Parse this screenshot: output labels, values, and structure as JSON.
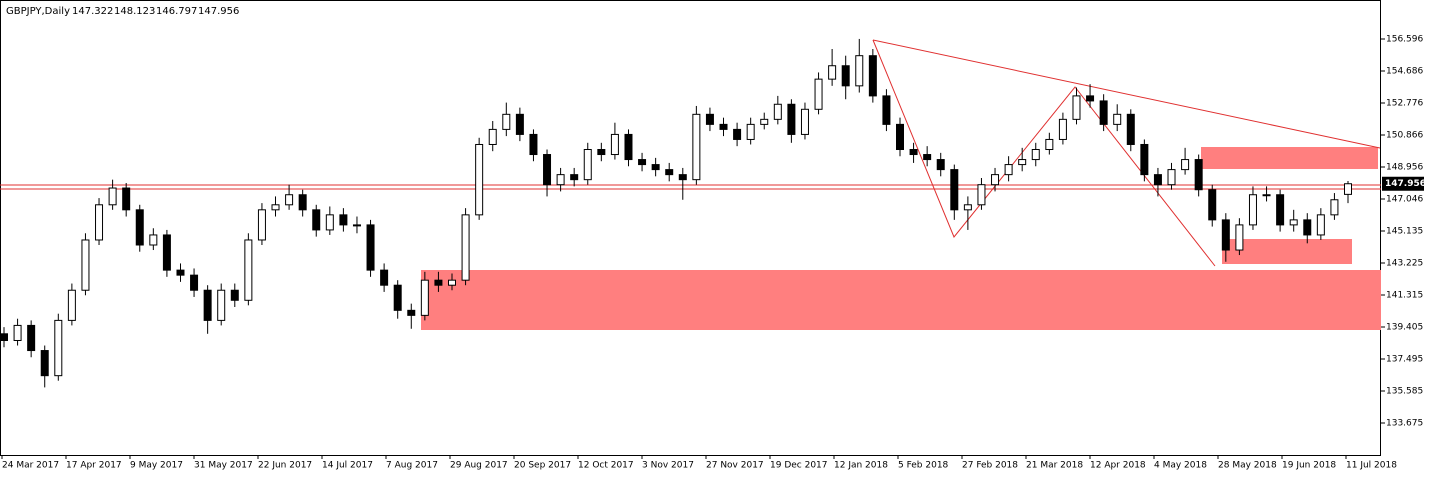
{
  "chart_data": {
    "type": "candlestick",
    "title": "GBPJPY,Daily",
    "ylim": [
      131.765,
      158.924
    ],
    "yticks": [
      156.596,
      154.686,
      152.776,
      150.866,
      148.956,
      147.046,
      145.135,
      143.225,
      141.315,
      139.405,
      137.495,
      135.585,
      133.675
    ],
    "categories": [
      "24 Mar 2017",
      "17 Apr 2017",
      "9 May 2017",
      "31 May 2017",
      "22 Jun 2017",
      "14 Jul 2017",
      "7 Aug 2017",
      "29 Aug 2017",
      "20 Sep 2017",
      "12 Oct 2017",
      "3 Nov 2017",
      "27 Nov 2017",
      "19 Dec 2017",
      "12 Jan 2018",
      "5 Feb 2018",
      "27 Feb 2018",
      "21 Mar 2018",
      "12 Apr 2018",
      "4 May 2018",
      "28 May 2018",
      "19 Jun 2018",
      "11 Jul 2018"
    ],
    "candles": [
      [
        139.0,
        139.4,
        138.2,
        138.6
      ],
      [
        138.6,
        139.9,
        138.3,
        139.5
      ],
      [
        139.5,
        139.8,
        137.6,
        138.0
      ],
      [
        138.0,
        138.3,
        135.8,
        136.5
      ],
      [
        136.5,
        140.2,
        136.2,
        139.8
      ],
      [
        139.8,
        142.0,
        139.5,
        141.6
      ],
      [
        141.6,
        145.0,
        141.3,
        144.6
      ],
      [
        144.6,
        147.1,
        144.3,
        146.7
      ],
      [
        146.7,
        148.2,
        146.4,
        147.7
      ],
      [
        147.7,
        148.0,
        146.0,
        146.4
      ],
      [
        146.4,
        146.7,
        143.9,
        144.3
      ],
      [
        144.3,
        145.3,
        144.0,
        144.9
      ],
      [
        144.9,
        145.2,
        142.4,
        142.8
      ],
      [
        142.8,
        143.2,
        142.1,
        142.5
      ],
      [
        142.5,
        142.9,
        141.2,
        141.6
      ],
      [
        141.6,
        141.9,
        139.0,
        139.8
      ],
      [
        139.8,
        142.0,
        139.5,
        141.6
      ],
      [
        141.6,
        142.0,
        140.6,
        141.0
      ],
      [
        141.0,
        145.0,
        140.7,
        144.6
      ],
      [
        144.6,
        146.8,
        144.3,
        146.4
      ],
      [
        146.4,
        147.2,
        146.0,
        146.7
      ],
      [
        146.7,
        147.9,
        146.4,
        147.3
      ],
      [
        147.3,
        147.6,
        146.0,
        146.4
      ],
      [
        146.4,
        146.7,
        144.8,
        145.2
      ],
      [
        145.2,
        146.6,
        144.9,
        146.1
      ],
      [
        146.1,
        146.5,
        145.1,
        145.5
      ],
      [
        145.5,
        146.0,
        145.0,
        145.5
      ],
      [
        145.5,
        145.8,
        142.4,
        142.8
      ],
      [
        142.8,
        143.2,
        141.5,
        141.9
      ],
      [
        141.9,
        142.2,
        139.9,
        140.4
      ],
      [
        140.4,
        140.8,
        139.3,
        140.1
      ],
      [
        140.1,
        142.7,
        139.8,
        142.2
      ],
      [
        142.2,
        142.7,
        141.5,
        141.9
      ],
      [
        141.9,
        142.6,
        141.6,
        142.2
      ],
      [
        142.2,
        146.5,
        141.9,
        146.1
      ],
      [
        146.1,
        150.7,
        145.8,
        150.3
      ],
      [
        150.3,
        151.7,
        149.9,
        151.2
      ],
      [
        151.2,
        152.8,
        150.8,
        152.1
      ],
      [
        152.1,
        152.5,
        150.5,
        150.9
      ],
      [
        150.9,
        151.2,
        149.3,
        149.7
      ],
      [
        149.7,
        150.0,
        147.2,
        147.9
      ],
      [
        147.9,
        148.9,
        147.5,
        148.5
      ],
      [
        148.5,
        148.9,
        147.8,
        148.2
      ],
      [
        148.2,
        150.4,
        147.9,
        150.0
      ],
      [
        150.0,
        150.4,
        149.3,
        149.7
      ],
      [
        149.7,
        151.6,
        149.4,
        150.9
      ],
      [
        150.9,
        151.2,
        149.0,
        149.4
      ],
      [
        149.4,
        149.8,
        148.7,
        149.1
      ],
      [
        149.1,
        149.5,
        148.4,
        148.8
      ],
      [
        148.8,
        149.2,
        148.1,
        148.5
      ],
      [
        148.5,
        148.9,
        147.0,
        148.2
      ],
      [
        148.2,
        152.6,
        147.9,
        152.1
      ],
      [
        152.1,
        152.5,
        151.1,
        151.5
      ],
      [
        151.5,
        151.9,
        150.8,
        151.2
      ],
      [
        151.2,
        151.6,
        150.2,
        150.6
      ],
      [
        150.6,
        151.9,
        150.3,
        151.5
      ],
      [
        151.5,
        152.2,
        151.2,
        151.8
      ],
      [
        151.8,
        153.2,
        151.5,
        152.7
      ],
      [
        152.7,
        153.0,
        150.4,
        150.9
      ],
      [
        150.9,
        152.8,
        150.6,
        152.4
      ],
      [
        152.4,
        154.6,
        152.1,
        154.2
      ],
      [
        154.2,
        156.0,
        153.8,
        155.0
      ],
      [
        155.0,
        155.6,
        153.0,
        153.8
      ],
      [
        153.8,
        156.6,
        153.4,
        155.6
      ],
      [
        155.6,
        156.0,
        152.8,
        153.2
      ],
      [
        153.2,
        153.6,
        151.1,
        151.5
      ],
      [
        151.5,
        151.9,
        149.6,
        150.0
      ],
      [
        150.0,
        150.4,
        149.2,
        149.7
      ],
      [
        149.7,
        150.2,
        149.0,
        149.4
      ],
      [
        149.4,
        149.8,
        148.4,
        148.8
      ],
      [
        148.8,
        149.1,
        145.8,
        146.4
      ],
      [
        146.4,
        147.2,
        145.2,
        146.7
      ],
      [
        146.7,
        148.3,
        146.4,
        147.9
      ],
      [
        147.9,
        148.9,
        147.5,
        148.5
      ],
      [
        148.5,
        149.6,
        148.1,
        149.1
      ],
      [
        149.1,
        150.1,
        148.7,
        149.4
      ],
      [
        149.4,
        150.4,
        149.0,
        150.0
      ],
      [
        150.0,
        151.0,
        149.7,
        150.6
      ],
      [
        150.6,
        152.2,
        150.3,
        151.8
      ],
      [
        151.8,
        153.7,
        151.5,
        153.2
      ],
      [
        153.2,
        153.9,
        152.5,
        152.9
      ],
      [
        152.9,
        153.3,
        151.1,
        151.5
      ],
      [
        151.5,
        152.7,
        151.1,
        152.1
      ],
      [
        152.1,
        152.4,
        149.9,
        150.3
      ],
      [
        150.3,
        150.6,
        148.1,
        148.5
      ],
      [
        148.5,
        148.9,
        147.2,
        147.9
      ],
      [
        147.9,
        149.2,
        147.6,
        148.8
      ],
      [
        148.8,
        150.1,
        148.5,
        149.4
      ],
      [
        149.4,
        149.7,
        147.2,
        147.6
      ],
      [
        147.6,
        147.9,
        145.4,
        145.8
      ],
      [
        145.8,
        146.2,
        143.3,
        144.0
      ],
      [
        144.0,
        145.9,
        143.7,
        145.5
      ],
      [
        145.5,
        147.8,
        145.2,
        147.3
      ],
      [
        147.3,
        147.8,
        146.9,
        147.3
      ],
      [
        147.3,
        147.6,
        145.1,
        145.5
      ],
      [
        145.5,
        146.4,
        145.1,
        145.8
      ],
      [
        145.8,
        146.2,
        144.4,
        144.9
      ],
      [
        144.9,
        146.5,
        144.6,
        146.1
      ],
      [
        146.1,
        147.4,
        145.8,
        147.0
      ],
      [
        147.322,
        148.123,
        146.797,
        147.956
      ]
    ]
  }
}
